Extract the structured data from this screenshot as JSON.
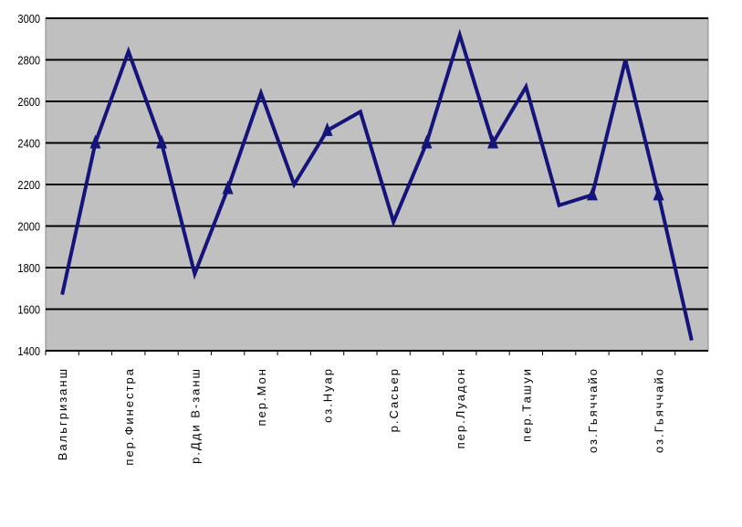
{
  "chart_data": {
    "type": "line",
    "categories": [
      "Вальгризанш",
      null,
      "пер.Финестра",
      null,
      "р.Дди В-занш",
      null,
      "пер.Мон",
      null,
      "оз.Нуар",
      null,
      "р.Сасьер",
      null,
      "пер.Луадон",
      null,
      "пер.Ташуи",
      null,
      "оз.Гьяччайо",
      null,
      "оз.Гьяччайо",
      null
    ],
    "series": [
      {
        "color": "#14147a",
        "values": [
          1670,
          2400,
          2840,
          2400,
          1770,
          2180,
          2640,
          2200,
          2460,
          2550,
          2020,
          2400,
          2920,
          2400,
          2670,
          2100,
          2150,
          2800,
          2150,
          1450
        ]
      },
      {
        "color": "#14147a",
        "marker": "triangle",
        "values": [
          null,
          2400,
          null,
          2400,
          null,
          2180,
          null,
          null,
          2460,
          null,
          null,
          2400,
          null,
          2400,
          null,
          null,
          2150,
          null,
          2150,
          null
        ]
      }
    ],
    "ylim": [
      1400,
      3000
    ],
    "yticks": [
      1400,
      1600,
      1800,
      2000,
      2200,
      2400,
      2600,
      2800,
      3000
    ],
    "grid": true
  }
}
